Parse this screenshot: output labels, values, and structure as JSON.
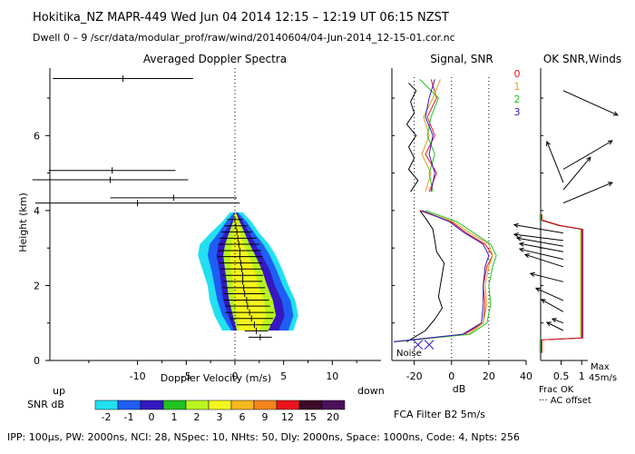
{
  "header": {
    "line1": "Hokitika_NZ   MAPR-449   Wed Jun 04 2014 12:15 – 12:19 UT 06:15 NZST",
    "line2": "Dwell   0 –  9   /scr/data/modular_prof/raw/wind/20140604/04-Jun-2014_12-15-01.cor.nc"
  },
  "colors": {
    "snr_scale": [
      "#22e0f0",
      "#1e5ef5",
      "#3518c0",
      "#21c221",
      "#b8f520",
      "#f5f51e",
      "#f5b81e",
      "#f5851e",
      "#e8141e",
      "#3a0a26",
      "#4c0f5a"
    ],
    "beam": [
      "#e8141e",
      "#e0a01e",
      "#21c221",
      "#3518c0"
    ]
  },
  "chart_data": [
    {
      "id": "spectra",
      "type": "heatmap",
      "title": "Averaged Doppler Spectra",
      "xlabel": "Doppler Velocity (m/s)",
      "ylabel": "Height (km)",
      "xlim": [
        -19,
        15
      ],
      "ylim": [
        0,
        7.8
      ],
      "x_ticks": [
        -10,
        -5,
        0,
        5,
        10
      ],
      "y_ticks": [
        0,
        2,
        4,
        6
      ],
      "x_end_labels": [
        "up",
        "down"
      ],
      "snr_profile": [
        {
          "h": 0.8,
          "lo": -1.3,
          "hi": 6.0,
          "l": [
            -0.4,
            -0.1,
            0.2,
            0.4
          ],
          "r": [
            5.5,
            4.5,
            3.4,
            2.5
          ]
        },
        {
          "h": 1.2,
          "lo": -2.1,
          "hi": 6.5,
          "l": [
            -1.3,
            -0.7,
            -0.2,
            0.2
          ],
          "r": [
            6.0,
            5.1,
            4.2,
            3.2
          ]
        },
        {
          "h": 1.6,
          "lo": -2.6,
          "hi": 6.2,
          "l": [
            -1.8,
            -1.2,
            -0.6,
            -0.1
          ],
          "r": [
            5.7,
            4.8,
            3.9,
            3.0
          ]
        },
        {
          "h": 2.0,
          "lo": -2.8,
          "hi": 5.5,
          "l": [
            -2.1,
            -1.4,
            -0.8,
            -0.2
          ],
          "r": [
            4.9,
            4.1,
            3.3,
            2.4
          ]
        },
        {
          "h": 2.4,
          "lo": -3.3,
          "hi": 4.9,
          "l": [
            -2.4,
            -1.6,
            -1.0,
            -0.4
          ],
          "r": [
            4.3,
            3.6,
            2.8,
            2.0
          ]
        },
        {
          "h": 2.8,
          "lo": -3.8,
          "hi": 4.2,
          "l": [
            -2.8,
            -1.9,
            -1.2,
            -0.5
          ],
          "r": [
            3.6,
            2.8,
            2.1,
            1.4
          ]
        },
        {
          "h": 3.1,
          "lo": -3.6,
          "hi": 3.5,
          "l": [
            -2.6,
            -1.7,
            -1.0,
            -0.3
          ],
          "r": [
            2.9,
            2.1,
            1.5,
            0.9
          ]
        },
        {
          "h": 3.4,
          "lo": -2.5,
          "hi": 2.5,
          "l": [
            -1.7,
            -1.1,
            -0.6,
            -0.1
          ],
          "r": [
            2.0,
            1.5,
            1.0,
            0.5
          ]
        },
        {
          "h": 3.7,
          "lo": -1.3,
          "hi": 1.7,
          "l": [
            -0.9,
            -0.4,
            -0.2,
            0.0
          ],
          "r": [
            1.2,
            0.8,
            0.5,
            0.3
          ]
        },
        {
          "h": 3.95,
          "lo": -0.5,
          "hi": 0.8,
          "l": [
            -0.1,
            0.0,
            0.0,
            0.0
          ],
          "r": [
            0.3,
            0.2,
            0.1,
            0.05
          ]
        }
      ],
      "moments": [
        {
          "h": 0.62,
          "v": 2.6,
          "w": 1.2
        },
        {
          "h": 0.79,
          "v": 2.2,
          "w": 1.2
        },
        {
          "h": 0.95,
          "v": 2.0,
          "w": 1.8
        },
        {
          "h": 1.12,
          "v": 1.7,
          "w": 2.2
        },
        {
          "h": 1.28,
          "v": 1.5,
          "w": 2.5
        },
        {
          "h": 1.45,
          "v": 1.3,
          "w": 2.3
        },
        {
          "h": 1.61,
          "v": 1.2,
          "w": 2.3
        },
        {
          "h": 1.78,
          "v": 1.0,
          "w": 2.1
        },
        {
          "h": 1.94,
          "v": 0.9,
          "w": 2.2
        },
        {
          "h": 2.11,
          "v": 0.8,
          "w": 2.0
        },
        {
          "h": 2.27,
          "v": 0.8,
          "w": 2.1
        },
        {
          "h": 2.44,
          "v": 0.7,
          "w": 2.2
        },
        {
          "h": 2.6,
          "v": 0.6,
          "w": 2.2
        },
        {
          "h": 2.77,
          "v": 0.5,
          "w": 2.3
        },
        {
          "h": 2.93,
          "v": 0.5,
          "w": 2.2
        },
        {
          "h": 3.1,
          "v": 0.4,
          "w": 2.1
        },
        {
          "h": 3.26,
          "v": 0.3,
          "w": 1.9
        },
        {
          "h": 3.43,
          "v": 0.2,
          "w": 1.6
        },
        {
          "h": 3.59,
          "v": 0.1,
          "w": 1.2
        },
        {
          "h": 3.76,
          "v": 0.0,
          "w": 0.8
        },
        {
          "h": 4.2,
          "v": -10.0,
          "w": 10.5
        },
        {
          "h": 4.34,
          "v": -6.3,
          "w": 6.5
        },
        {
          "h": 4.82,
          "v": -12.8,
          "w": 8.0
        },
        {
          "h": 5.07,
          "v": -12.6,
          "w": 6.5
        },
        {
          "h": 7.52,
          "v": -11.5,
          "w": 7.2
        }
      ],
      "colorbar": {
        "label": "SNR dB",
        "ticks": [
          "-2",
          "-1",
          "0",
          "1",
          "2",
          "3",
          "6",
          "9",
          "12",
          "15",
          "20"
        ]
      }
    },
    {
      "id": "signal",
      "type": "line",
      "title": "Signal, SNR",
      "xlabel": "dB",
      "xlim": [
        -32,
        40
      ],
      "ylim": [
        0,
        7.8
      ],
      "x_ticks": [
        -20,
        0,
        20,
        40
      ],
      "legend": [
        "0",
        "1",
        "2",
        "3"
      ],
      "noise_label": "Noise",
      "noise_db": [
        -12,
        -18
      ],
      "noise_profile": {
        "h": [
          0.5,
          0.8,
          1.1,
          1.4,
          1.7,
          2.0,
          2.3,
          2.6,
          2.9,
          3.2,
          3.5,
          3.8,
          4.0
        ],
        "v": [
          -24,
          -14,
          -9,
          -5,
          -7,
          -6,
          -5,
          -4,
          -8,
          -9,
          -10,
          -14,
          -17
        ]
      },
      "hatch_profile": {
        "h": [
          4.5,
          4.8,
          5.1,
          5.4,
          5.7,
          6.0,
          6.3,
          6.6,
          6.9,
          7.2,
          7.4
        ],
        "v": [
          -22,
          -18,
          -23,
          -20,
          -23,
          -19,
          -24,
          -20,
          -22,
          -19,
          -23
        ]
      },
      "snr_series": [
        {
          "name": "0",
          "h": [
            0.5,
            0.7,
            1.0,
            1.5,
            2.0,
            2.5,
            2.8,
            3.1,
            3.4,
            3.7,
            4.0
          ],
          "v": [
            -31,
            7,
            17,
            18,
            17,
            19,
            22,
            18,
            8,
            0,
            -17
          ]
        },
        {
          "name": "1",
          "h": [
            0.5,
            0.7,
            1.0,
            1.5,
            2.0,
            2.5,
            2.8,
            3.1,
            3.4,
            3.7,
            4.0
          ],
          "v": [
            -30,
            9,
            17,
            19,
            18,
            20,
            22,
            20,
            10,
            1,
            -16
          ]
        },
        {
          "name": "2",
          "h": [
            0.5,
            0.7,
            1.0,
            1.5,
            2.0,
            2.5,
            2.8,
            3.1,
            3.4,
            3.7,
            4.0
          ],
          "v": [
            -30,
            10,
            19,
            21,
            20,
            22,
            24,
            21,
            12,
            3,
            -14
          ]
        },
        {
          "name": "3",
          "h": [
            0.5,
            0.7,
            1.0,
            1.5,
            2.0,
            2.5,
            2.8,
            3.1,
            3.4,
            3.7,
            4.0
          ],
          "v": [
            -31,
            6,
            16,
            17,
            17,
            18,
            20,
            17,
            7,
            -1,
            -16
          ]
        }
      ],
      "upper_series": [
        {
          "name": "0",
          "h": [
            4.5,
            5.0,
            5.5,
            6.0,
            6.5,
            7.0,
            7.5
          ],
          "v": [
            -12,
            -8,
            -14,
            -9,
            -13,
            -8,
            -11
          ]
        },
        {
          "name": "1",
          "h": [
            4.5,
            5.0,
            5.5,
            6.0,
            6.5,
            7.0,
            7.5
          ],
          "v": [
            -14,
            -11,
            -16,
            -12,
            -15,
            -10,
            -6
          ]
        },
        {
          "name": "2",
          "h": [
            4.5,
            5.0,
            5.5,
            6.0,
            6.5,
            7.0,
            7.5
          ],
          "v": [
            -10,
            -12,
            -9,
            -13,
            -11,
            -7,
            -17
          ]
        },
        {
          "name": "3",
          "h": [
            4.5,
            5.0,
            5.5,
            6.0,
            6.5,
            7.0,
            7.5
          ],
          "v": [
            -11,
            -9,
            -12,
            -10,
            -14,
            -12,
            -9
          ]
        }
      ],
      "footer": "FCA Filter B2   5m/s"
    },
    {
      "id": "winds",
      "type": "line",
      "title": "OK SNR,Winds",
      "xlim": [
        0,
        1.15
      ],
      "ylim": [
        0,
        7.8
      ],
      "x_ticks": [
        0.5,
        1
      ],
      "x_tick_labels": [
        "0.5",
        "1"
      ],
      "frac_ok": {
        "h": [
          0.2,
          0.55,
          0.6,
          3.5,
          3.6,
          3.75,
          3.9
        ],
        "v": [
          0.0,
          0.0,
          1.0,
          1.0,
          0.45,
          0.0,
          0.0
        ]
      },
      "labels": [
        "Frac OK",
        "··· AC offset"
      ],
      "max_label": [
        "Max",
        "45m/s"
      ],
      "winds": [
        {
          "h": 0.8,
          "u": -0.3,
          "v": 0.2
        },
        {
          "h": 1.0,
          "u": -0.2,
          "v": 0.1
        },
        {
          "h": 1.3,
          "u": -0.4,
          "v": 0.3
        },
        {
          "h": 1.6,
          "u": -0.5,
          "v": 0.3
        },
        {
          "h": 2.1,
          "u": -0.6,
          "v": 0.2
        },
        {
          "h": 2.5,
          "u": -0.7,
          "v": 0.3
        },
        {
          "h": 2.7,
          "u": -0.8,
          "v": 0.25
        },
        {
          "h": 2.9,
          "u": -0.8,
          "v": 0.2
        },
        {
          "h": 3.05,
          "u": -0.85,
          "v": 0.2
        },
        {
          "h": 3.2,
          "u": -0.9,
          "v": 0.15
        },
        {
          "h": 3.4,
          "u": -0.9,
          "v": 0.2
        },
        {
          "h": 4.2,
          "u": 0.9,
          "v": 0.5
        },
        {
          "h": 4.55,
          "u": 0.5,
          "v": 0.8
        },
        {
          "h": 4.75,
          "u": -0.3,
          "v": 1.0
        },
        {
          "h": 5.1,
          "u": 0.9,
          "v": 0.7
        },
        {
          "h": 7.2,
          "u": 1.0,
          "v": -0.6
        }
      ]
    }
  ],
  "footer_line": "IPP: 100µs,   PW: 2000ns,   NCI:  28,   NSpec: 10,  NHts: 50,   Dly: 2000ns,   Space: 1000ns,   Code: 4,   Npts: 256"
}
